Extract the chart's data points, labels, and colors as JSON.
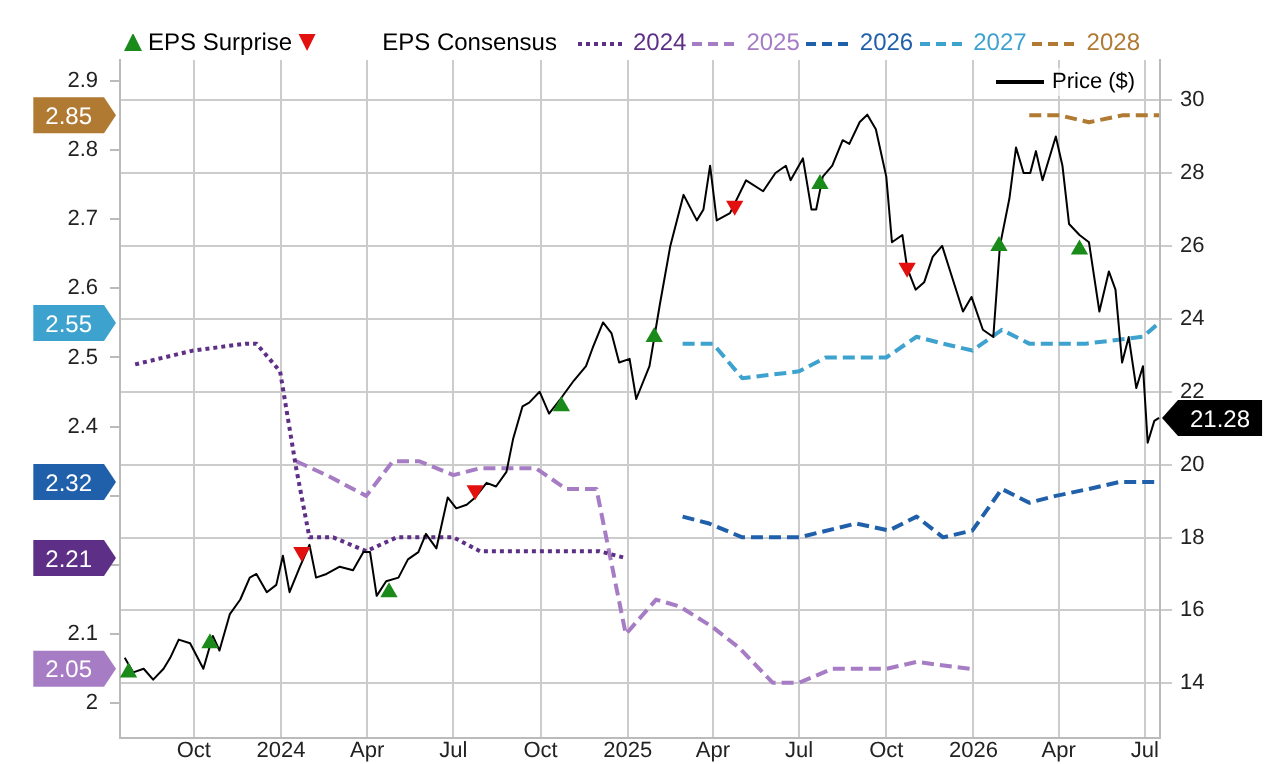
{
  "chart_data": {
    "type": "line",
    "legend_title": "EPS Consensus",
    "legend": "top",
    "grid": true,
    "marker": "none",
    "xlim": [
      "2023-07-15",
      "2026-07-17"
    ],
    "xticks": [
      {
        "value": "2023-10-01",
        "label": "Oct"
      },
      {
        "value": "2024-01-01",
        "label": "2024"
      },
      {
        "value": "2024-04-01",
        "label": "Apr"
      },
      {
        "value": "2024-07-01",
        "label": "Jul"
      },
      {
        "value": "2024-10-01",
        "label": "Oct"
      },
      {
        "value": "2025-01-01",
        "label": "2025"
      },
      {
        "value": "2025-04-01",
        "label": "Apr"
      },
      {
        "value": "2025-07-01",
        "label": "Jul"
      },
      {
        "value": "2025-10-01",
        "label": "Oct"
      },
      {
        "value": "2026-01-01",
        "label": "2026"
      },
      {
        "value": "2026-04-01",
        "label": "Apr"
      },
      {
        "value": "2026-07-01",
        "label": "Jul"
      }
    ],
    "ylim": [
      1.95,
      2.93
    ],
    "yticks": [
      2,
      2.1,
      {
        "value": 2.2,
        "label": null
      },
      {
        "value": 2.3,
        "label": null
      },
      2.4,
      2.5,
      2.6,
      2.7,
      2.8,
      2.9
    ],
    "y2lim": [
      12.5,
      31.1
    ],
    "y2ticks": [
      14,
      16,
      18,
      20,
      22,
      24,
      26,
      28,
      30
    ],
    "series": [
      {
        "name": "Price ($)",
        "axis": "y2",
        "color": "#000000",
        "line_style": "solid",
        "value_labels": [
          null,
          null,
          null,
          null,
          null,
          null,
          null,
          null,
          null,
          null,
          null,
          null,
          null,
          null,
          null,
          null,
          null,
          null,
          null,
          null,
          null,
          null,
          null,
          null,
          null,
          null,
          null,
          null,
          null,
          null,
          null,
          null,
          null,
          null,
          null,
          null,
          null,
          null,
          null,
          null,
          null,
          null,
          null,
          null,
          null,
          null,
          null,
          null,
          null,
          null,
          null,
          null,
          null,
          null,
          null,
          null,
          null,
          null,
          null,
          null,
          null,
          null,
          null,
          null,
          null,
          null,
          null,
          null,
          null,
          null,
          null,
          null,
          null,
          null,
          null,
          null,
          null,
          null,
          null,
          null,
          null,
          null,
          null,
          null,
          null,
          null,
          null,
          null,
          null,
          null,
          null,
          null,
          null,
          null,
          null,
          null,
          null,
          null,
          null,
          null,
          null,
          null,
          null,
          null,
          null,
          null,
          null,
          null,
          null,
          null,
          null,
          null,
          null,
          "21.28"
        ],
        "x": [
          "2023-07-20",
          "2023-07-29",
          "2023-08-09",
          "2023-08-19",
          "2023-08-30",
          "2023-09-06",
          "2023-09-15",
          "2023-09-27",
          "2023-10-11",
          "2023-10-21",
          "2023-10-28",
          "2023-11-08",
          "2023-11-19",
          "2023-11-29",
          "2023-12-06",
          "2023-12-17",
          "2023-12-27",
          "2024-01-03",
          "2024-01-10",
          "2024-01-21",
          "2024-01-31",
          "2024-02-07",
          "2024-02-18",
          "2024-03-03",
          "2024-03-17",
          "2024-03-28",
          "2024-04-04",
          "2024-04-11",
          "2024-04-21",
          "2024-05-04",
          "2024-05-14",
          "2024-05-25",
          "2024-06-02",
          "2024-06-13",
          "2024-06-25",
          "2024-07-04",
          "2024-07-15",
          "2024-07-24",
          "2024-08-05",
          "2024-08-15",
          "2024-08-26",
          "2024-09-02",
          "2024-09-12",
          "2024-09-19",
          "2024-09-30",
          "2024-10-10",
          "2024-10-22",
          "2024-11-05",
          "2024-11-18",
          "2024-11-25",
          "2024-12-06",
          "2024-12-15",
          "2024-12-23",
          "2025-01-03",
          "2025-01-10",
          "2025-01-24",
          "2025-02-04",
          "2025-02-15",
          "2025-03-01",
          "2025-03-15",
          "2025-03-22",
          "2025-03-29",
          "2025-04-05",
          "2025-04-19",
          "2025-05-06",
          "2025-05-24",
          "2025-06-06",
          "2025-06-17",
          "2025-06-22",
          "2025-07-05",
          "2025-07-14",
          "2025-07-19",
          "2025-07-26",
          "2025-08-05",
          "2025-08-16",
          "2025-08-23",
          "2025-09-03",
          "2025-09-11",
          "2025-09-20",
          "2025-10-01",
          "2025-10-07",
          "2025-10-18",
          "2025-10-23",
          "2025-11-01",
          "2025-11-10",
          "2025-11-19",
          "2025-11-29",
          "2025-12-10",
          "2025-12-21",
          "2025-12-30",
          "2026-01-11",
          "2026-01-22",
          "2026-01-29",
          "2026-02-08",
          "2026-02-15",
          "2026-02-23",
          "2026-03-02",
          "2026-03-08",
          "2026-03-15",
          "2026-03-29",
          "2026-04-05",
          "2026-04-12",
          "2026-04-23",
          "2026-05-03",
          "2026-05-14",
          "2026-05-24",
          "2026-05-31",
          "2026-06-07",
          "2026-06-14",
          "2026-06-22",
          "2026-06-29",
          "2026-07-04",
          "2026-07-11",
          "2026-07-16"
        ],
        "values": [
          14.7,
          14.3,
          14.4,
          14.1,
          14.4,
          14.7,
          15.2,
          15.1,
          14.4,
          15.3,
          14.9,
          15.9,
          16.3,
          16.9,
          17.0,
          16.5,
          16.7,
          17.5,
          16.5,
          17.2,
          17.8,
          16.9,
          17.0,
          17.2,
          17.1,
          17.6,
          17.6,
          16.4,
          16.8,
          16.9,
          17.4,
          17.6,
          18.1,
          17.7,
          19.1,
          18.8,
          18.9,
          19.1,
          19.5,
          19.4,
          19.8,
          20.7,
          21.6,
          21.7,
          22.0,
          21.4,
          21.8,
          22.3,
          22.7,
          23.2,
          23.9,
          23.6,
          22.8,
          22.9,
          21.8,
          22.7,
          24.4,
          26.0,
          27.4,
          26.7,
          27.0,
          28.2,
          26.7,
          26.9,
          27.8,
          27.5,
          28.0,
          28.2,
          27.8,
          28.4,
          27.0,
          27.0,
          27.9,
          28.2,
          28.9,
          28.8,
          29.4,
          29.6,
          29.2,
          27.9,
          26.1,
          26.3,
          25.4,
          24.8,
          25.0,
          25.7,
          26.0,
          25.1,
          24.2,
          24.6,
          23.7,
          23.5,
          26.0,
          27.3,
          28.7,
          28.0,
          28.0,
          28.6,
          27.8,
          29.0,
          28.2,
          26.6,
          26.3,
          26.1,
          24.2,
          25.3,
          24.8,
          22.8,
          23.5,
          22.1,
          22.7,
          20.6,
          21.2,
          21.28
        ]
      },
      {
        "name": "EPS Surprise",
        "type": "scatter",
        "axis": "y2",
        "marker": "triangle",
        "color": "#1a8a1a",
        "colors": [
          "#1a8a1a",
          "#1a8a1a",
          "#e31010",
          "#1a8a1a",
          "#e31010",
          "#1a8a1a",
          "#1a8a1a",
          "#e31010",
          "#1a8a1a",
          "#e31010",
          "#1a8a1a",
          "#1a8a1a"
        ],
        "x": [
          "2023-07-24",
          "2023-10-18",
          "2024-01-23",
          "2024-04-24",
          "2024-07-24",
          "2024-10-23",
          "2025-01-29",
          "2025-04-24",
          "2025-07-23",
          "2025-10-23",
          "2026-01-28",
          "2026-04-23"
        ],
        "values": [
          14.3,
          15.1,
          17.6,
          16.5,
          19.3,
          21.6,
          23.5,
          27.1,
          27.7,
          25.4,
          26.0,
          25.9
        ]
      },
      {
        "name": "2024",
        "type": "line",
        "color": "#5e2f86",
        "line_style": "dotted",
        "x": [
          "2023-07-31",
          "2023-09-30",
          "2023-11-25",
          "2023-12-06",
          "2023-12-31",
          "2024-01-17",
          "2024-01-31",
          "2024-02-25",
          "2024-03-31",
          "2024-05-02",
          "2024-06-02",
          "2024-07-01",
          "2024-07-29",
          "2024-09-23",
          "2024-12-02",
          "2024-12-30"
        ],
        "values": [
          2.49,
          2.51,
          2.52,
          2.52,
          2.48,
          2.34,
          2.24,
          2.24,
          2.22,
          2.24,
          2.24,
          2.24,
          2.22,
          2.22,
          2.22,
          2.21
        ]
      },
      {
        "name": "2025",
        "type": "line",
        "color": "#a67cc4",
        "line_style": "dashed",
        "x": [
          "2024-01-17",
          "2024-02-18",
          "2024-03-31",
          "2024-04-28",
          "2024-05-26",
          "2024-07-01",
          "2024-07-29",
          "2024-09-26",
          "2024-10-28",
          "2024-11-29",
          "2024-12-30",
          "2025-01-31",
          "2025-02-25",
          "2025-04-01",
          "2025-04-29",
          "2025-06-03",
          "2025-07-01",
          "2025-08-05",
          "2025-10-01",
          "2025-11-02",
          "2025-12-28"
        ],
        "values": [
          2.35,
          2.33,
          2.3,
          2.35,
          2.35,
          2.33,
          2.34,
          2.34,
          2.31,
          2.31,
          2.1,
          2.15,
          2.14,
          2.11,
          2.08,
          2.03,
          2.03,
          2.05,
          2.05,
          2.06,
          2.05
        ]
      },
      {
        "name": "2026",
        "type": "line",
        "color": "#2060aa",
        "line_style": "dashed",
        "x": [
          "2025-02-28",
          "2025-03-28",
          "2025-05-02",
          "2025-07-01",
          "2025-08-30",
          "2025-10-04",
          "2025-11-02",
          "2025-11-30",
          "2025-12-31",
          "2026-01-31",
          "2026-03-01",
          "2026-03-29",
          "2026-05-03",
          "2026-06-04",
          "2026-06-25",
          "2026-07-16"
        ],
        "values": [
          2.27,
          2.26,
          2.24,
          2.24,
          2.26,
          2.25,
          2.27,
          2.24,
          2.25,
          2.31,
          2.29,
          2.3,
          2.31,
          2.32,
          2.32,
          2.32
        ]
      },
      {
        "name": "2027",
        "type": "line",
        "color": "#3ea2cf",
        "line_style": "dashed",
        "x": [
          "2025-02-28",
          "2025-04-01",
          "2025-05-02",
          "2025-07-01",
          "2025-07-29",
          "2025-10-01",
          "2025-11-02",
          "2025-11-30",
          "2025-12-31",
          "2026-01-31",
          "2026-03-01",
          "2026-04-30",
          "2026-06-29",
          "2026-07-16"
        ],
        "values": [
          2.52,
          2.52,
          2.47,
          2.48,
          2.5,
          2.5,
          2.53,
          2.52,
          2.51,
          2.54,
          2.52,
          2.52,
          2.53,
          2.55
        ]
      },
      {
        "name": "2028",
        "type": "line",
        "color": "#b07a32",
        "line_style": "dashed",
        "x": [
          "2026-03-01",
          "2026-04-02",
          "2026-05-03",
          "2026-06-07",
          "2026-07-16"
        ],
        "values": [
          2.85,
          2.85,
          2.84,
          2.85,
          2.85
        ]
      }
    ],
    "annotations": [
      "2.21",
      "2.05",
      "2.32",
      "2.55",
      "2.85"
    ]
  }
}
